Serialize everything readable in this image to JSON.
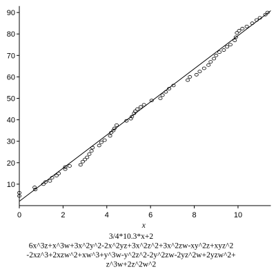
{
  "chart_data": {
    "type": "scatter",
    "x": [
      0,
      0,
      0.7,
      0.73,
      1.1,
      1.2,
      1.4,
      1.5,
      1.7,
      1.8,
      2.1,
      2.1,
      2.3,
      2.8,
      2.9,
      3.0,
      3.1,
      3.2,
      3.3,
      3.35,
      3.65,
      3.75,
      3.9,
      4.15,
      4.2,
      4.3,
      4.35,
      4.45,
      4.9,
      5.1,
      5.15,
      5.25,
      5.3,
      5.4,
      5.55,
      5.7,
      6.05,
      6.45,
      6.55,
      6.7,
      6.85,
      7.05,
      7.7,
      7.8,
      8.1,
      8.25,
      8.45,
      8.65,
      8.75,
      8.9,
      9.0,
      9.15,
      9.35,
      9.5,
      9.65,
      9.85,
      9.9,
      9.95,
      10.05,
      10.2,
      10.4,
      10.65,
      10.85,
      11.0,
      11.25,
      11.35
    ],
    "values": [
      6,
      4.5,
      8.5,
      7.5,
      10,
      11,
      11.5,
      13,
      14,
      15,
      17,
      18,
      18.5,
      19,
      20.5,
      21.5,
      22.5,
      24,
      25.5,
      27,
      28,
      29.5,
      30.5,
      32.5,
      34,
      35,
      36,
      37.5,
      39.5,
      40.5,
      41.5,
      43,
      44,
      45,
      46,
      47,
      49,
      50,
      51.5,
      53,
      54.5,
      56,
      58.5,
      60,
      61,
      62.5,
      64,
      65.5,
      67,
      68.5,
      70,
      71.5,
      72.5,
      74,
      75,
      77,
      78.5,
      80.5,
      81.5,
      82.5,
      83.5,
      85,
      86.5,
      87.5,
      89,
      90
    ],
    "line": {
      "x": [
        0,
        11.5
      ],
      "values": [
        2,
        90.84
      ]
    },
    "xlim": [
      0,
      11.5
    ],
    "ylim": [
      0,
      93
    ],
    "xticks": [
      0,
      2,
      4,
      6,
      8,
      10
    ],
    "yticks": [
      10,
      20,
      30,
      40,
      50,
      60,
      70,
      80,
      90
    ],
    "xlabel": "x",
    "caption_lines": [
      "3/4*10.3*x+2",
      "6x^3z+x^3w+3x^2y^2-2x^2yz+3x^2z^2+3x^2zw-xy^2z+xyz^2",
      "-2xz^3+2xzw^2+xw^3+y^3w-y^2z^2-2y^2zw-2yz^2w+2yzw^2+",
      "z^3w+2z^2w^2"
    ]
  }
}
